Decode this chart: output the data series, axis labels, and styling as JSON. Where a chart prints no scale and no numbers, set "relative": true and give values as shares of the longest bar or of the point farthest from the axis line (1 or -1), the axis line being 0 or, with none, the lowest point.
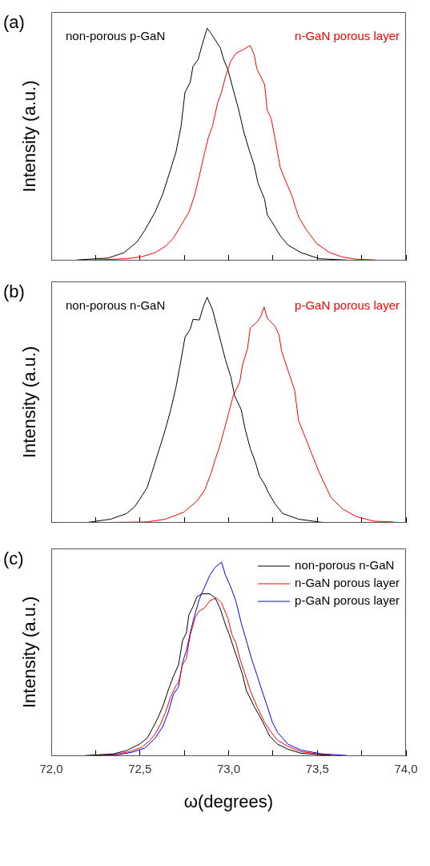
{
  "chart_data": [
    {
      "type": "line",
      "relative": true,
      "ylabel": "Intensity (a.u.)",
      "annotations": [
        "(a)"
      ],
      "legend": false,
      "marker": "none",
      "line_style": "solid",
      "grid": false,
      "tick_labels": false,
      "xlim": [
        72,
        74
      ],
      "xticks": [
        {
          "value": 72,
          "label": null
        },
        {
          "value": 72.25,
          "label": null
        },
        {
          "value": 72.5,
          "label": null
        },
        {
          "value": 72.75,
          "label": null
        },
        {
          "value": 73,
          "label": null
        },
        {
          "value": 73.25,
          "label": null
        },
        {
          "value": 73.5,
          "label": null
        },
        {
          "value": 73.75,
          "label": null
        },
        {
          "value": 74,
          "label": null
        }
      ],
      "series": [
        {
          "name": "non-porous p-GaN",
          "color": "#000000",
          "x": [
            72.144,
            72.321,
            72.409,
            72.482,
            72.526,
            72.585,
            72.629,
            72.666,
            72.703,
            72.732,
            72.754,
            72.784,
            72.799,
            72.828,
            72.85,
            72.879,
            72.901,
            72.953,
            72.975,
            72.997,
            73.026,
            73.056,
            73.085,
            73.115,
            73.144,
            73.166,
            73.203,
            73.218,
            73.247,
            73.291,
            73.335,
            73.409,
            73.512,
            73.674,
            73.821
          ],
          "values": [
            0.003,
            0.011,
            0.034,
            0.079,
            0.129,
            0.208,
            0.287,
            0.376,
            0.466,
            0.578,
            0.724,
            0.769,
            0.836,
            0.865,
            0.927,
            1,
            0.978,
            0.916,
            0.86,
            0.82,
            0.736,
            0.652,
            0.556,
            0.478,
            0.411,
            0.333,
            0.264,
            0.197,
            0.163,
            0.107,
            0.067,
            0.034,
            0.008,
            0.002,
            0
          ]
        },
        {
          "name": "n-GaN porous layer",
          "color": "#ff0000",
          "x": [
            72.144,
            72.424,
            72.512,
            72.585,
            72.644,
            72.688,
            72.732,
            72.776,
            72.806,
            72.835,
            72.865,
            72.887,
            72.909,
            72.938,
            72.96,
            72.982,
            73.012,
            73.041,
            73.085,
            73.122,
            73.144,
            73.159,
            73.203,
            73.218,
            73.24,
            73.262,
            73.291,
            73.321,
            73.357,
            73.394,
            73.438,
            73.497,
            73.571,
            73.644,
            73.718,
            73.828
          ],
          "values": [
            0,
            0.008,
            0.017,
            0.034,
            0.062,
            0.096,
            0.152,
            0.208,
            0.275,
            0.364,
            0.466,
            0.533,
            0.578,
            0.679,
            0.724,
            0.791,
            0.858,
            0.892,
            0.909,
            0.926,
            0.887,
            0.826,
            0.758,
            0.646,
            0.612,
            0.524,
            0.401,
            0.344,
            0.279,
            0.189,
            0.133,
            0.073,
            0.034,
            0.015,
            0.006,
            0.003
          ]
        }
      ]
    },
    {
      "type": "line",
      "relative": true,
      "ylabel": "Intensity (a.u.)",
      "annotations": [
        "(b)"
      ],
      "legend": false,
      "marker": "none",
      "line_style": "solid",
      "grid": false,
      "tick_labels": false,
      "xlim": [
        72,
        74
      ],
      "xticks": [
        {
          "value": 72,
          "label": null
        },
        {
          "value": 72.25,
          "label": null
        },
        {
          "value": 72.5,
          "label": null
        },
        {
          "value": 72.75,
          "label": null
        },
        {
          "value": 73,
          "label": null
        },
        {
          "value": 73.25,
          "label": null
        },
        {
          "value": 73.5,
          "label": null
        },
        {
          "value": 73.75,
          "label": null
        },
        {
          "value": 74,
          "label": null
        }
      ],
      "series": [
        {
          "name": "non-porous n-GaN",
          "color": "#000000",
          "x": [
            72.188,
            72.335,
            72.424,
            72.468,
            72.497,
            72.541,
            72.571,
            72.615,
            72.644,
            72.674,
            72.703,
            72.732,
            72.754,
            72.784,
            72.799,
            72.835,
            72.857,
            72.879,
            72.909,
            72.946,
            72.982,
            73.012,
            73.034,
            73.071,
            73.093,
            73.122,
            73.151,
            73.174,
            73.203,
            73.225,
            73.262,
            73.306,
            73.394,
            73.526,
            73.674,
            73.924
          ],
          "values": [
            0,
            0.016,
            0.041,
            0.069,
            0.102,
            0.157,
            0.231,
            0.342,
            0.416,
            0.502,
            0.6,
            0.723,
            0.822,
            0.859,
            0.902,
            0.899,
            0.957,
            1,
            0.945,
            0.834,
            0.723,
            0.649,
            0.563,
            0.502,
            0.416,
            0.33,
            0.269,
            0.207,
            0.17,
            0.133,
            0.084,
            0.041,
            0.016,
            0.002,
            0,
            0
          ]
        },
        {
          "name": "p-GaN porous layer",
          "color": "#ff0000",
          "x": [
            72.188,
            72.541,
            72.644,
            72.747,
            72.821,
            72.865,
            72.901,
            72.924,
            72.946,
            72.968,
            72.997,
            73.026,
            73.063,
            73.078,
            73.107,
            73.122,
            73.159,
            73.181,
            73.2,
            73.218,
            73.262,
            73.284,
            73.299,
            73.335,
            73.372,
            73.394,
            73.431,
            73.468,
            73.512,
            73.578,
            73.644,
            73.718,
            73.821,
            73.931
          ],
          "values": [
            0,
            0.004,
            0.016,
            0.047,
            0.096,
            0.145,
            0.219,
            0.28,
            0.33,
            0.391,
            0.477,
            0.563,
            0.625,
            0.699,
            0.773,
            0.864,
            0.889,
            0.914,
            0.957,
            0.907,
            0.871,
            0.834,
            0.761,
            0.675,
            0.589,
            0.454,
            0.381,
            0.307,
            0.221,
            0.111,
            0.061,
            0.028,
            0.007,
            0.004
          ]
        }
      ]
    },
    {
      "type": "line",
      "relative": true,
      "ylabel": "Intensity (a.u.)",
      "xlabel": "ω(degrees)",
      "annotations": [
        "(c)"
      ],
      "legend": "top right",
      "marker": "none",
      "line_style": "solid",
      "grid": false,
      "tick_labels": "x",
      "xlim": [
        72,
        74
      ],
      "xticks": [
        {
          "value": 72,
          "label": "72,0"
        },
        {
          "value": 72.25,
          "label": null
        },
        {
          "value": 72.5,
          "label": "72,5"
        },
        {
          "value": 72.75,
          "label": null
        },
        {
          "value": 73,
          "label": "73,0"
        },
        {
          "value": 73.25,
          "label": null
        },
        {
          "value": 73.5,
          "label": "73,5"
        },
        {
          "value": 73.75,
          "label": null
        },
        {
          "value": 74,
          "label": "74,0"
        }
      ],
      "series": [
        {
          "name": "non-porous n-GaN",
          "color": "#000000",
          "x": [
            72.174,
            72.35,
            72.424,
            72.497,
            72.541,
            72.571,
            72.6,
            72.629,
            72.659,
            72.688,
            72.718,
            72.74,
            72.762,
            72.776,
            72.799,
            72.821,
            72.85,
            72.894,
            72.924,
            72.953,
            72.982,
            73.004,
            73.026,
            73.049,
            73.078,
            73.1,
            73.144,
            73.188,
            73.232,
            73.276,
            73.335,
            73.409,
            73.526,
            73.6
          ],
          "values": [
            0,
            0.01,
            0.027,
            0.06,
            0.091,
            0.142,
            0.193,
            0.255,
            0.337,
            0.409,
            0.47,
            0.594,
            0.635,
            0.728,
            0.769,
            0.82,
            0.836,
            0.836,
            0.815,
            0.759,
            0.677,
            0.625,
            0.564,
            0.502,
            0.42,
            0.338,
            0.255,
            0.183,
            0.101,
            0.06,
            0.034,
            0.013,
            0.005,
            0
          ]
        },
        {
          "name": "n-GaN porous layer",
          "color": "#ff0000",
          "x": [
            72.174,
            72.365,
            72.438,
            72.512,
            72.556,
            72.585,
            72.615,
            72.644,
            72.674,
            72.703,
            72.718,
            72.74,
            72.762,
            72.784,
            72.813,
            72.835,
            72.865,
            72.894,
            72.931,
            72.96,
            72.997,
            73.019,
            73.041,
            73.063,
            73.093,
            73.122,
            73.159,
            73.203,
            73.24,
            73.276,
            73.335,
            73.409,
            73.526,
            73.585
          ],
          "values": [
            0,
            0.008,
            0.021,
            0.044,
            0.08,
            0.111,
            0.162,
            0.224,
            0.306,
            0.362,
            0.378,
            0.47,
            0.501,
            0.625,
            0.717,
            0.748,
            0.764,
            0.8,
            0.815,
            0.789,
            0.707,
            0.625,
            0.584,
            0.502,
            0.42,
            0.338,
            0.256,
            0.173,
            0.121,
            0.08,
            0.049,
            0.021,
            0.008,
            0.003
          ]
        },
        {
          "name": "p-GaN porous layer",
          "color": "#0000ff",
          "x": [
            72.181,
            72.379,
            72.453,
            72.526,
            72.585,
            72.629,
            72.659,
            72.688,
            72.718,
            72.74,
            72.762,
            72.784,
            72.806,
            72.835,
            72.865,
            72.894,
            72.924,
            72.96,
            72.982,
            73.012,
            73.041,
            73.071,
            73.107,
            73.129,
            73.159,
            73.188,
            73.218,
            73.247,
            73.276,
            73.335,
            73.409,
            73.526,
            73.666
          ],
          "values": [
            0,
            0.006,
            0.018,
            0.039,
            0.09,
            0.151,
            0.223,
            0.316,
            0.357,
            0.481,
            0.543,
            0.635,
            0.717,
            0.809,
            0.871,
            0.932,
            0.973,
            1,
            0.933,
            0.871,
            0.799,
            0.686,
            0.573,
            0.501,
            0.419,
            0.337,
            0.255,
            0.173,
            0.121,
            0.06,
            0.029,
            0.01,
            0.002
          ]
        }
      ]
    }
  ]
}
